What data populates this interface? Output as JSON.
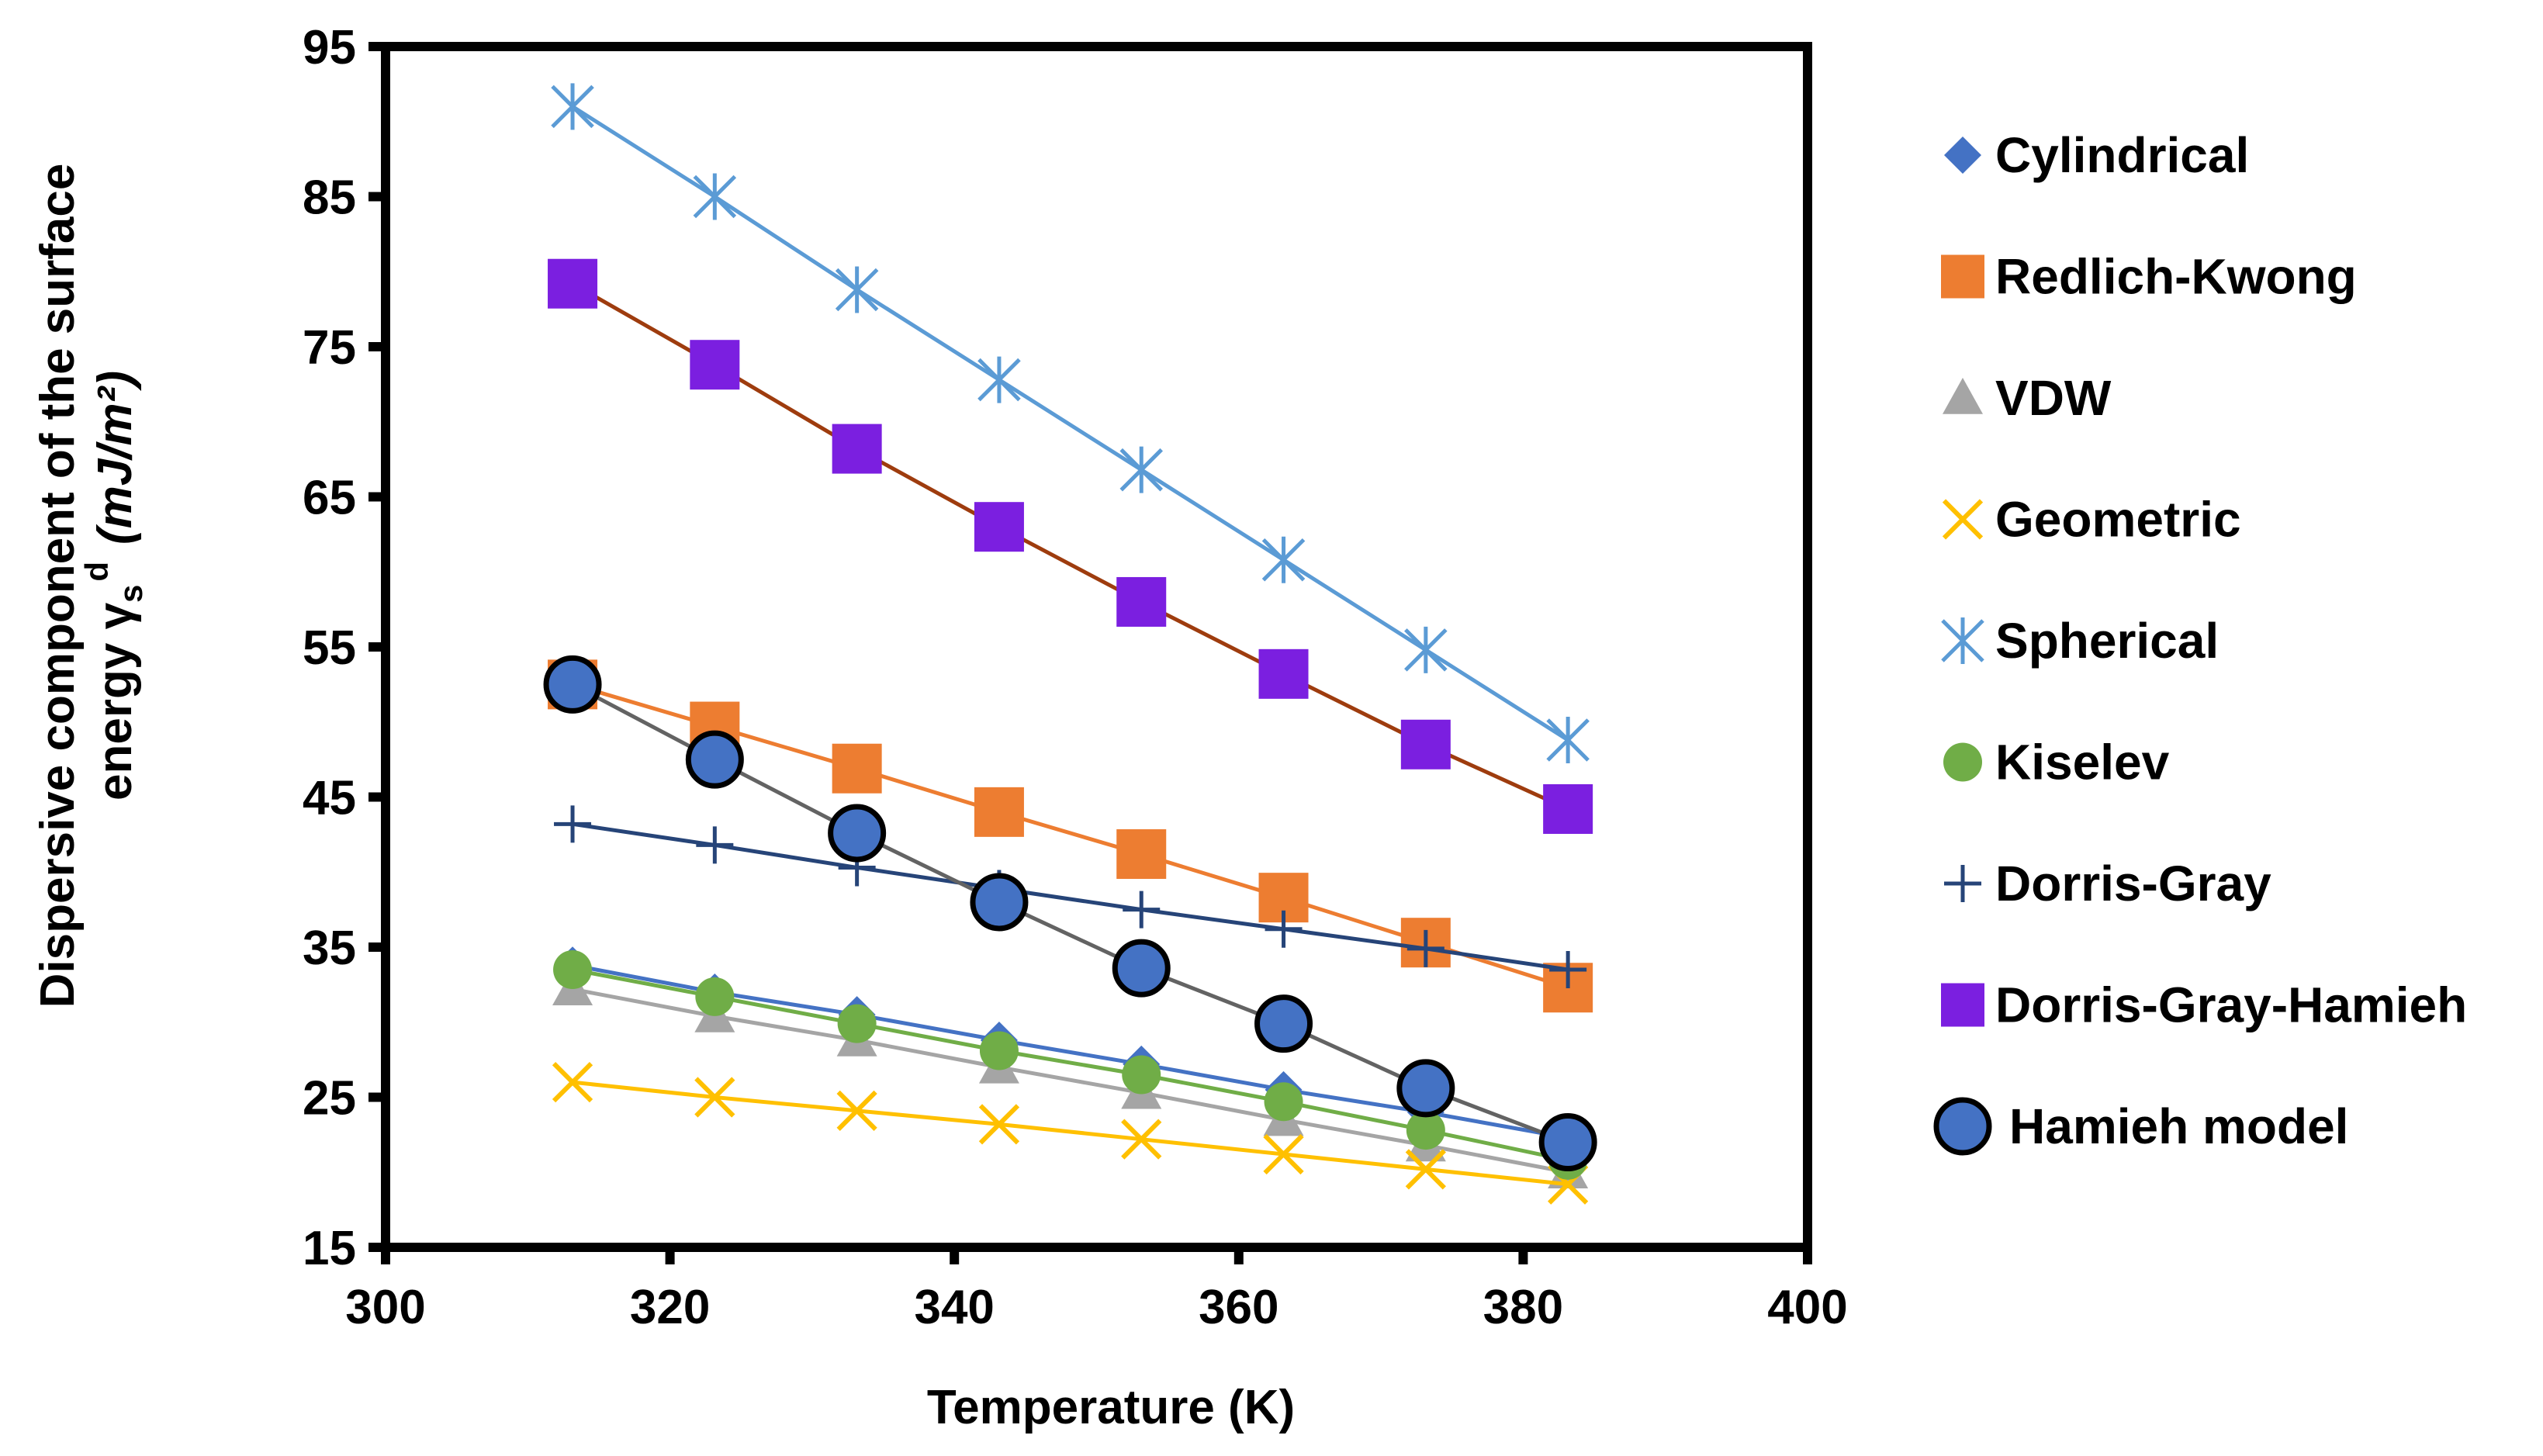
{
  "chart_data": {
    "type": "scatter",
    "title": "",
    "xlabel": "Temperature (K)",
    "ylabel_line1": "Dispersive component of the surface",
    "ylabel_line2_prefix": "energy γ",
    "ylabel_sub": "s",
    "ylabel_sup": "d",
    "ylabel_units": "(mJ/m²)",
    "xlim": [
      300,
      400
    ],
    "ylim": [
      15,
      95
    ],
    "xticks": [
      300,
      320,
      340,
      360,
      380,
      400
    ],
    "yticks": [
      15,
      25,
      35,
      45,
      55,
      65,
      75,
      85,
      95
    ],
    "grid": false,
    "legend_position": "right",
    "x": [
      313.15,
      323.15,
      333.15,
      343.15,
      353.15,
      363.15,
      373.15,
      383.15
    ],
    "series": [
      {
        "name": "Cylindrical",
        "marker": "diamond",
        "color": "#4472C4",
        "line_color": "#4472C4",
        "values": [
          33.8,
          32.0,
          30.5,
          28.8,
          27.2,
          25.5,
          24.0,
          22.3
        ]
      },
      {
        "name": "Redlich-Kwong",
        "marker": "square",
        "color": "#ED7D31",
        "line_color": "#ED7D31",
        "values": [
          52.5,
          49.7,
          46.9,
          44.0,
          41.2,
          38.3,
          35.3,
          32.3
        ]
      },
      {
        "name": "VDW",
        "marker": "triangle",
        "color": "#A5A5A5",
        "line_color": "#A5A5A5",
        "values": [
          32.2,
          30.4,
          28.8,
          27.0,
          25.3,
          23.5,
          21.8,
          20.0
        ]
      },
      {
        "name": "Geometric",
        "marker": "x",
        "color": "#FFC000",
        "line_color": "#FFC000",
        "values": [
          26.0,
          25.0,
          24.1,
          23.2,
          22.2,
          21.2,
          20.2,
          19.2
        ]
      },
      {
        "name": "Spherical",
        "marker": "asterisk",
        "color": "#5B9BD5",
        "line_color": "#5B9BD5",
        "values": [
          91.0,
          85.0,
          78.8,
          72.8,
          66.8,
          60.8,
          54.8,
          48.8
        ]
      },
      {
        "name": "Kiselev",
        "marker": "circle",
        "color": "#70AD47",
        "line_color": "#70AD47",
        "values": [
          33.5,
          31.7,
          29.9,
          28.1,
          26.5,
          24.7,
          22.8,
          20.8
        ]
      },
      {
        "name": "Dorris-Gray",
        "marker": "plus",
        "color": "#264478",
        "line_color": "#264478",
        "values": [
          43.2,
          41.8,
          40.3,
          38.9,
          37.5,
          36.2,
          34.9,
          33.5
        ]
      },
      {
        "name": "Dorris-Gray-Hamieh",
        "marker": "square",
        "color": "#7B1FE0",
        "line_color": "#9E3C0E",
        "values": [
          79.2,
          73.8,
          68.2,
          63.0,
          58.0,
          53.2,
          48.5,
          44.2
        ]
      },
      {
        "name": "Hamieh model",
        "marker": "circle-outline",
        "color": "#4472C4",
        "line_color": "#636363",
        "values": [
          52.5,
          47.5,
          42.6,
          38.0,
          33.6,
          29.9,
          25.6,
          22.0
        ]
      }
    ]
  }
}
